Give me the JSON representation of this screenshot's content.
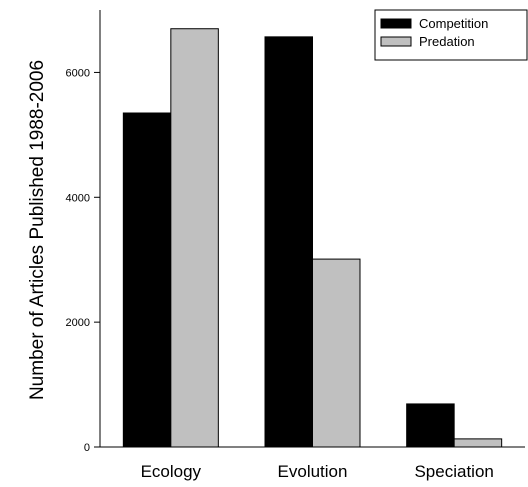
{
  "chart_data": {
    "type": "bar",
    "categories": [
      "Ecology",
      "Evolution",
      "Speciation"
    ],
    "series": [
      {
        "name": "Competition",
        "values": [
          5350,
          6570,
          690
        ],
        "color": "#000000"
      },
      {
        "name": "Predation",
        "values": [
          6700,
          3010,
          130
        ],
        "color": "#c0c0c0"
      }
    ],
    "title": "",
    "xlabel": "",
    "ylabel": "Number of Articles Published 1988-2006",
    "ylim": [
      0,
      7000
    ],
    "yticks": [
      0,
      2000,
      4000,
      6000
    ],
    "ytick_labels": [
      "0",
      "2000",
      "4000",
      "6000"
    ],
    "grid": false,
    "legend_position": "top-right"
  }
}
